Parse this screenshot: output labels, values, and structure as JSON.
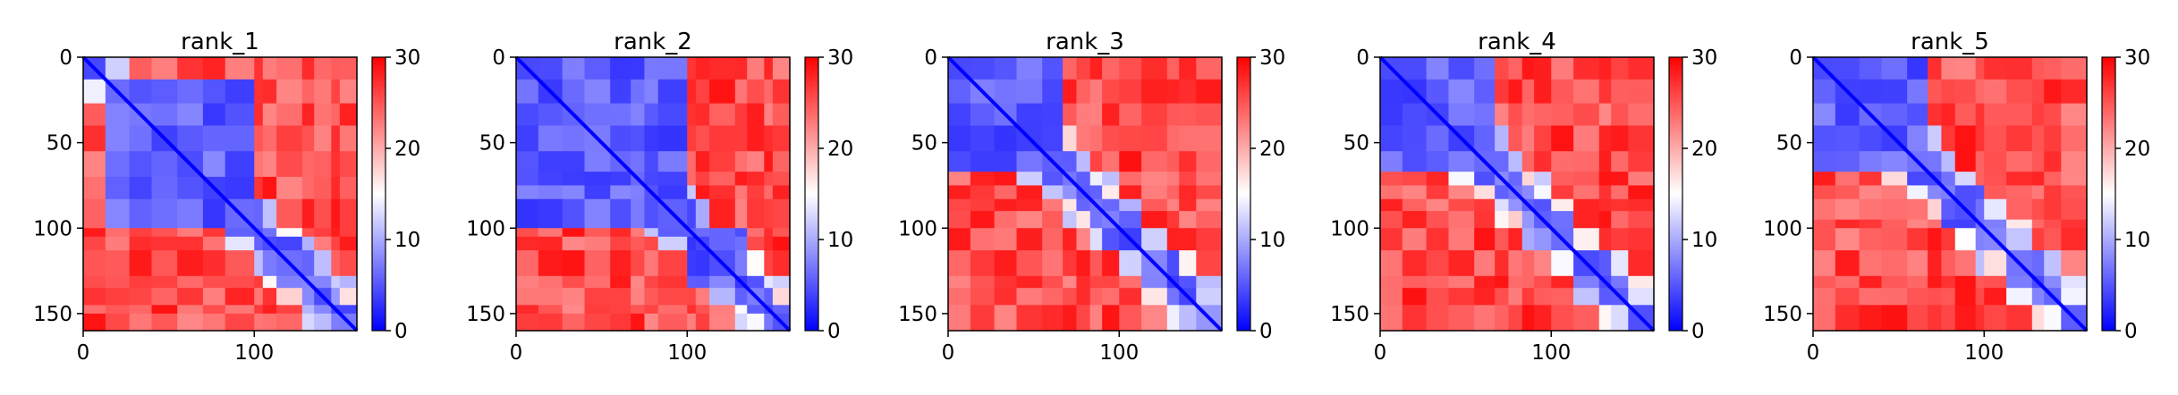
{
  "figure": {
    "description_colormap": "bwr",
    "colormap_colors": {
      "low": "#0000ff",
      "mid": "#ffffff",
      "high": "#ff0000"
    }
  },
  "chart_data": [
    {
      "type": "heatmap",
      "title": "rank_1",
      "n": 160,
      "xlim": [
        0,
        160
      ],
      "ylim": [
        160,
        0
      ],
      "xticks": [
        "0",
        "100"
      ],
      "yticks": [
        "0",
        "50",
        "100",
        "150"
      ],
      "colorbar": {
        "min": 0,
        "max": 30,
        "ticks": [
          "0",
          "10",
          "20",
          "30"
        ]
      },
      "segments": [
        0,
        13,
        27,
        40,
        55,
        70,
        83,
        100,
        105,
        113,
        128,
        135,
        145,
        150,
        160
      ],
      "blocks": [
        [
          0,
          10
        ],
        [
          0,
          100
        ]
      ],
      "noise_seed": 11
    },
    {
      "type": "heatmap",
      "title": "rank_2",
      "n": 160,
      "xlim": [
        0,
        160
      ],
      "ylim": [
        160,
        0
      ],
      "xticks": [
        "0",
        "100"
      ],
      "yticks": [
        "0",
        "50",
        "100",
        "150"
      ],
      "colorbar": {
        "min": 0,
        "max": 30,
        "ticks": [
          "0",
          "10",
          "20",
          "30"
        ]
      },
      "segments": [
        0,
        13,
        27,
        40,
        55,
        67,
        75,
        83,
        100,
        105,
        113,
        128,
        135,
        145,
        150,
        160
      ],
      "blocks": [
        [
          0,
          100
        ],
        [
          100,
          135
        ]
      ],
      "noise_seed": 22
    },
    {
      "type": "heatmap",
      "title": "rank_3",
      "n": 160,
      "xlim": [
        0,
        160
      ],
      "ylim": [
        160,
        0
      ],
      "xticks": [
        "0",
        "100"
      ],
      "yticks": [
        "0",
        "50",
        "100",
        "150"
      ],
      "colorbar": {
        "min": 0,
        "max": 30,
        "ticks": [
          "0",
          "10",
          "20",
          "30"
        ]
      },
      "segments": [
        0,
        13,
        27,
        40,
        55,
        67,
        75,
        83,
        90,
        100,
        113,
        128,
        135,
        145,
        160
      ],
      "blocks": [
        [
          0,
          65
        ],
        [
          80,
          100
        ],
        [
          100,
          113
        ],
        [
          128,
          145
        ]
      ],
      "noise_seed": 33
    },
    {
      "type": "heatmap",
      "title": "rank_4",
      "n": 160,
      "xlim": [
        0,
        160
      ],
      "ylim": [
        160,
        0
      ],
      "xticks": [
        "0",
        "100"
      ],
      "yticks": [
        "0",
        "50",
        "100",
        "150"
      ],
      "colorbar": {
        "min": 0,
        "max": 30,
        "ticks": [
          "0",
          "10",
          "20",
          "30"
        ]
      },
      "segments": [
        0,
        13,
        27,
        40,
        55,
        67,
        75,
        83,
        90,
        100,
        113,
        128,
        135,
        145,
        160
      ],
      "blocks": [
        [
          0,
          62
        ],
        [
          80,
          95
        ],
        [
          115,
          128
        ]
      ],
      "noise_seed": 44
    },
    {
      "type": "heatmap",
      "title": "rank_5",
      "n": 160,
      "xlim": [
        0,
        160
      ],
      "ylim": [
        160,
        0
      ],
      "xticks": [
        "0",
        "100"
      ],
      "yticks": [
        "0",
        "50",
        "100",
        "150"
      ],
      "colorbar": {
        "min": 0,
        "max": 30,
        "ticks": [
          "0",
          "10",
          "20",
          "30"
        ]
      },
      "segments": [
        0,
        13,
        27,
        40,
        55,
        67,
        75,
        83,
        95,
        100,
        113,
        128,
        135,
        145,
        160
      ],
      "blocks": [
        [
          0,
          62
        ],
        [
          78,
          98
        ],
        [
          112,
          128
        ]
      ],
      "noise_seed": 55
    }
  ]
}
